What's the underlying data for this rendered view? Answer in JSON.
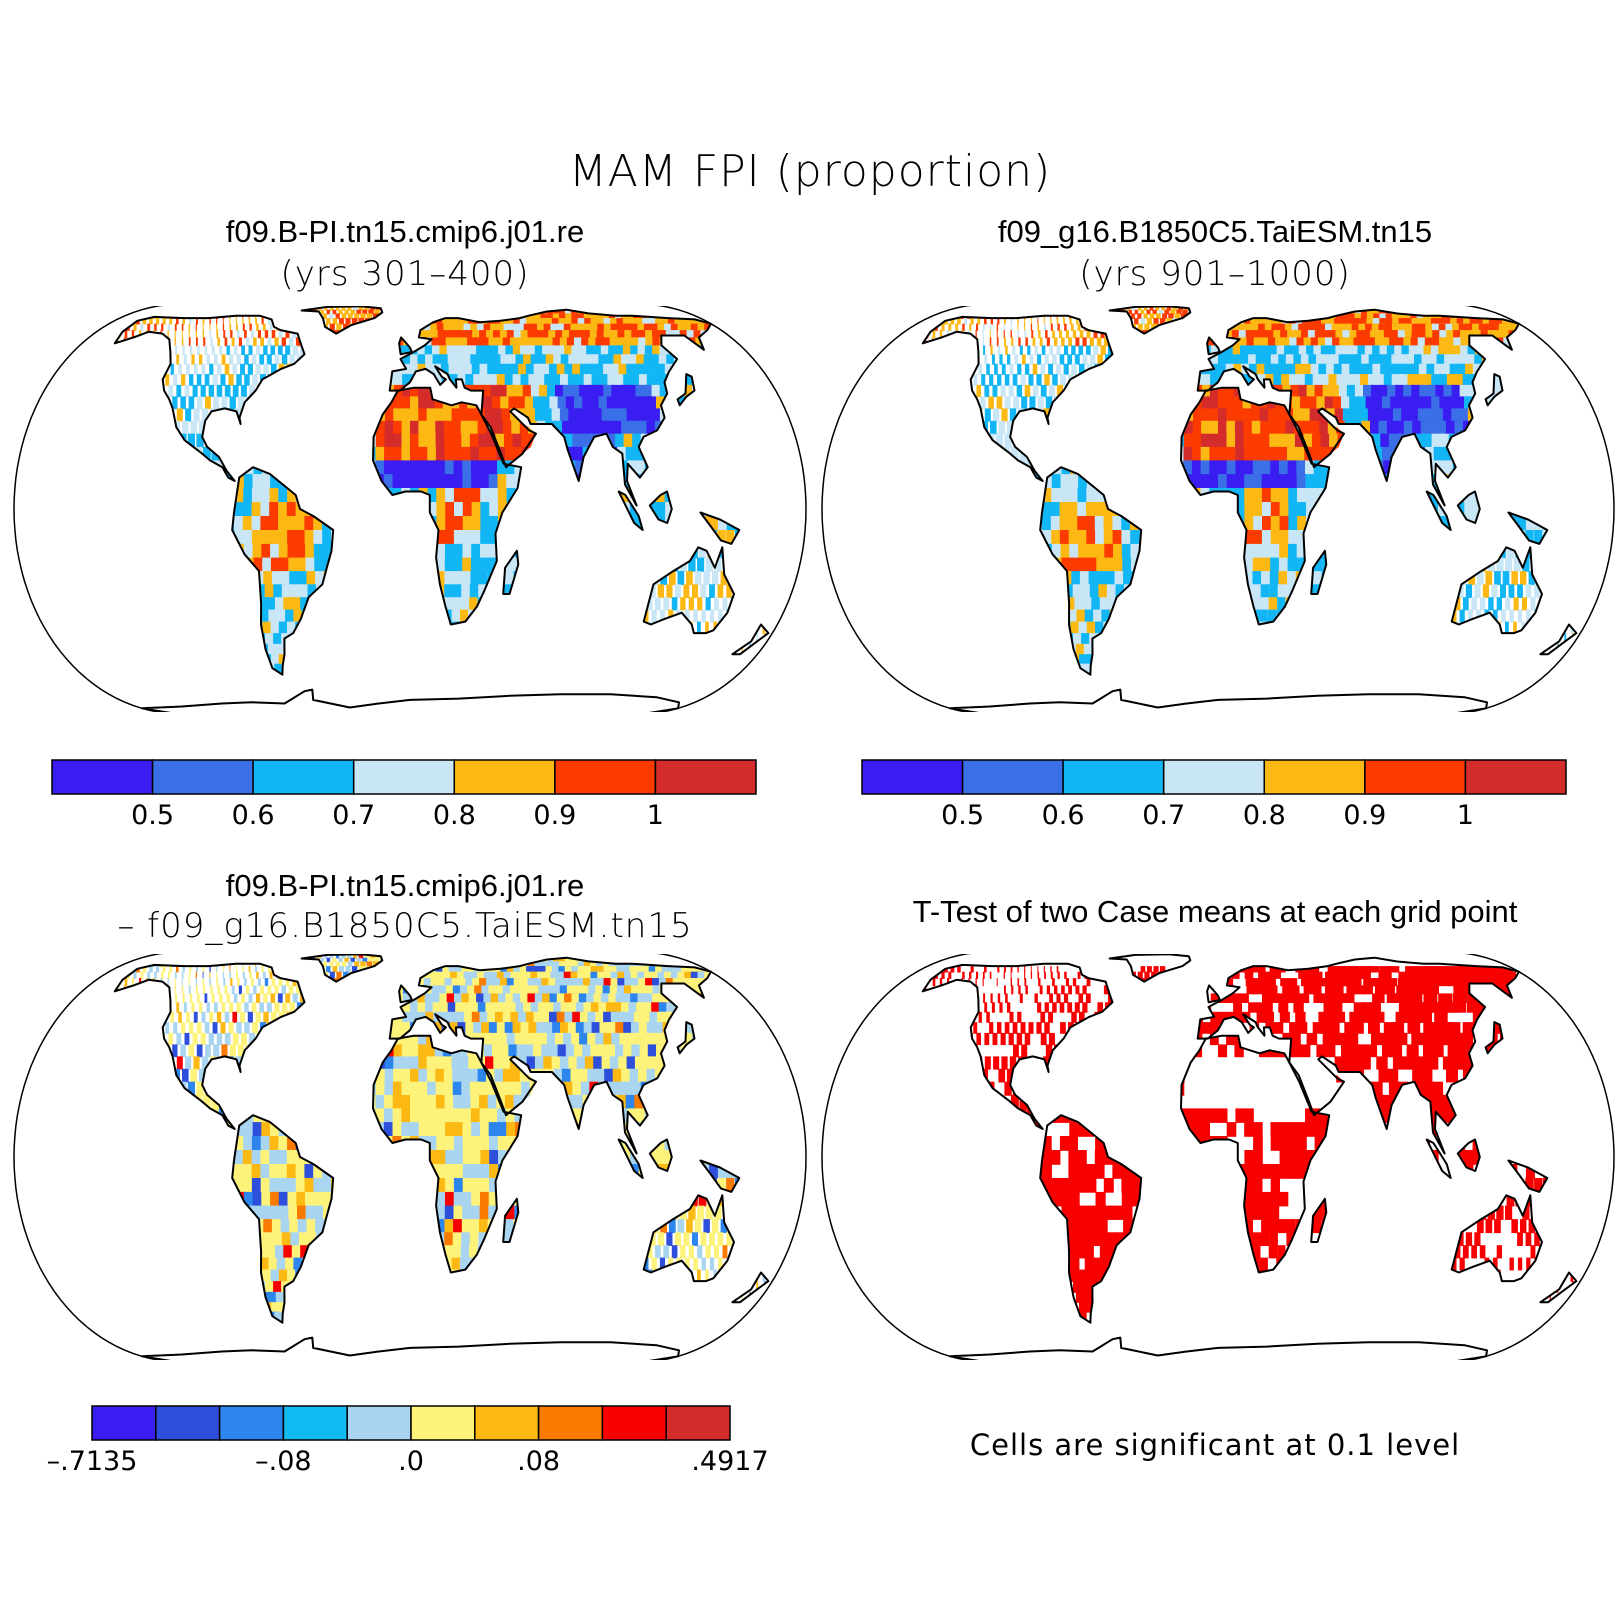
{
  "title": "MAM FPI (proportion)",
  "colors": {
    "fpi_levels": [
      "#3a1df0",
      "#3a6fe8",
      "#12b6f4",
      "#c8e6f6",
      "#fdb913",
      "#fb3b00",
      "#d42b2b"
    ],
    "diff_levels": [
      "#3a1df0",
      "#2e4fdc",
      "#2c86ee",
      "#12baf2",
      "#a9d5f1",
      "#fdf27a",
      "#fdb913",
      "#fb7a00",
      "#f80000",
      "#d42b2b"
    ],
    "significant": "#f80000",
    "coastline": "#000000"
  },
  "panels": [
    {
      "id": "case1",
      "title": "f09.B-PI.tn15.cmip6.j01.re",
      "subtitle": "(yrs 301–400)",
      "projection": "Robinson",
      "field": "MAM FPI"
    },
    {
      "id": "case2",
      "title": "f09_g16.B1850C5.TaiESM.tn15",
      "subtitle": "(yrs 901–1000)",
      "projection": "Robinson",
      "field": "MAM FPI"
    },
    {
      "id": "diff",
      "title": "f09.B-PI.tn15.cmip6.j01.re",
      "subtitle": "– f09_g16.B1850C5.TaiESM.tn15",
      "projection": "Robinson",
      "field": "difference"
    },
    {
      "id": "ttest",
      "title": "T-Test of two Case means at each grid point",
      "projection": "Robinson",
      "field": "significance",
      "note": "Cells are significant at 0.1 level"
    }
  ],
  "colorbars": {
    "fpi": {
      "n_boxes": 7,
      "labels": [
        "0.5",
        "0.6",
        "0.7",
        "0.8",
        "0.9",
        "1"
      ],
      "label_mode": "interior"
    },
    "diff": {
      "n_boxes": 10,
      "labels": [
        "–.7135",
        "–.08",
        ".0",
        ".08",
        ".4917"
      ],
      "label_positions": [
        0,
        3,
        5,
        7,
        10
      ]
    }
  }
}
